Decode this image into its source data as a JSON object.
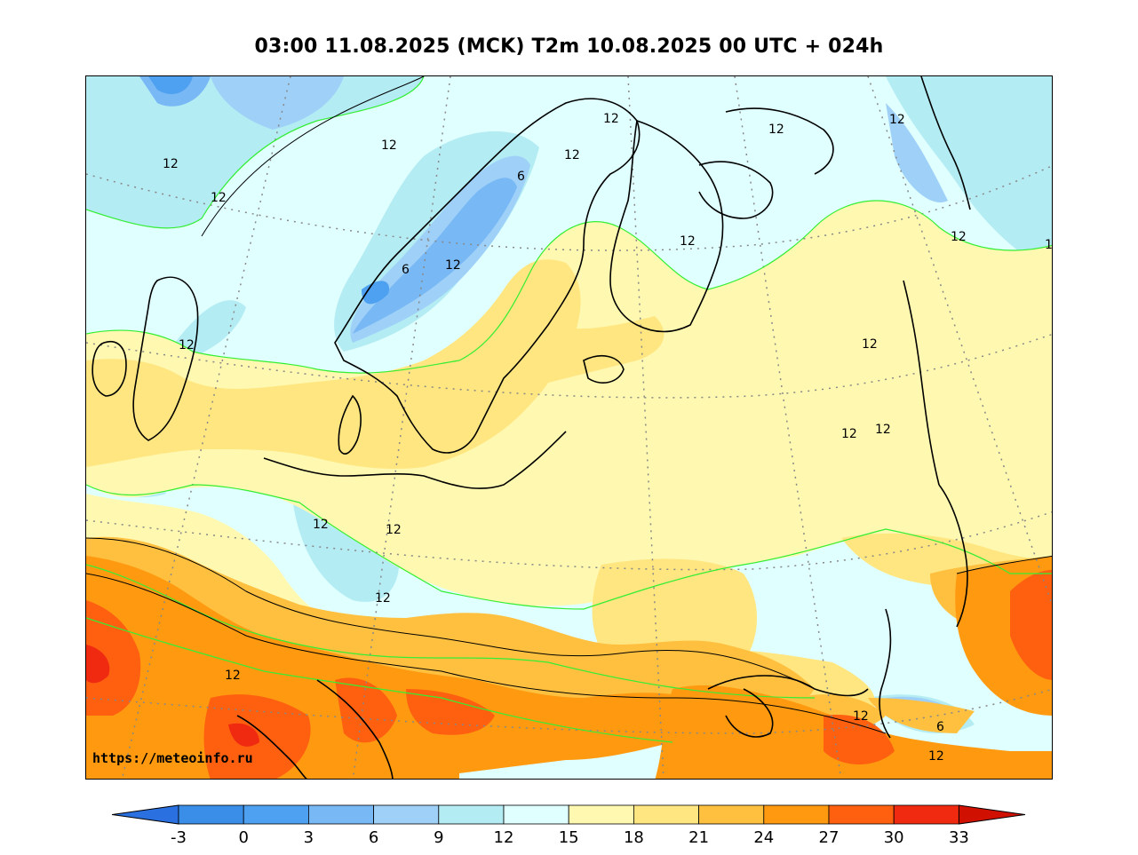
{
  "title": "03:00 11.08.2025 (MCK) T2m 10.08.2025 00 UTC + 024h",
  "watermark": "https://meteoinfo.ru",
  "colors": {
    "t_m3_0": "#3a8ee8",
    "t_0_3": "#4ea0f0",
    "t_3_6": "#78b8f5",
    "t_6_9": "#9ed0f8",
    "t_9_12": "#b4ecf4",
    "t_12_15": "#e0ffff",
    "t_15_18": "#fff8b0",
    "t_18_21": "#ffe680",
    "t_21_24": "#ffc040",
    "t_24_27": "#ff9a10",
    "t_27_30": "#ff6010",
    "t_30_33": "#f02a10",
    "t_over_33": "#d01000",
    "t_under_m3": "#2a70e0",
    "coastline": "#000000",
    "contour_green": "#33ee33",
    "contour_black": "#000000",
    "grid": "#888888"
  },
  "colorbar": {
    "ticks": [
      "-3",
      "0",
      "3",
      "6",
      "9",
      "12",
      "15",
      "18",
      "21",
      "24",
      "27",
      "30",
      "33"
    ]
  },
  "contour_labels": [
    {
      "text": "12",
      "name": "north-atlantic-12a"
    },
    {
      "text": "12",
      "name": "north-atlantic-12b"
    },
    {
      "text": "12",
      "name": "north-atlantic-12c"
    },
    {
      "text": "12",
      "name": "norway-north-12"
    },
    {
      "text": "6",
      "name": "norway-mountains-6"
    },
    {
      "text": "12",
      "name": "kola-12"
    },
    {
      "text": "12",
      "name": "arctic-12"
    },
    {
      "text": "12",
      "name": "arctic-east-12"
    },
    {
      "text": "12",
      "name": "karelia-12"
    },
    {
      "text": "6",
      "name": "south-norway-6"
    },
    {
      "text": "12",
      "name": "sweden-12"
    },
    {
      "text": "12",
      "name": "ural-12"
    },
    {
      "text": "12",
      "name": "scotland-12"
    },
    {
      "text": "12",
      "name": "volga-12"
    },
    {
      "text": "12",
      "name": "ural-south-12a"
    },
    {
      "text": "12",
      "name": "ural-south-12b"
    },
    {
      "text": "12",
      "name": "germany-12a"
    },
    {
      "text": "12",
      "name": "poland-12"
    },
    {
      "text": "12",
      "name": "alps-12a"
    },
    {
      "text": "12",
      "name": "alps-12b"
    },
    {
      "text": "12",
      "name": "caucasus-12"
    },
    {
      "text": "6",
      "name": "caucasus-6"
    },
    {
      "text": "12",
      "name": "caucasus-12b"
    },
    {
      "text": "1",
      "name": "east-edge-1"
    }
  ]
}
